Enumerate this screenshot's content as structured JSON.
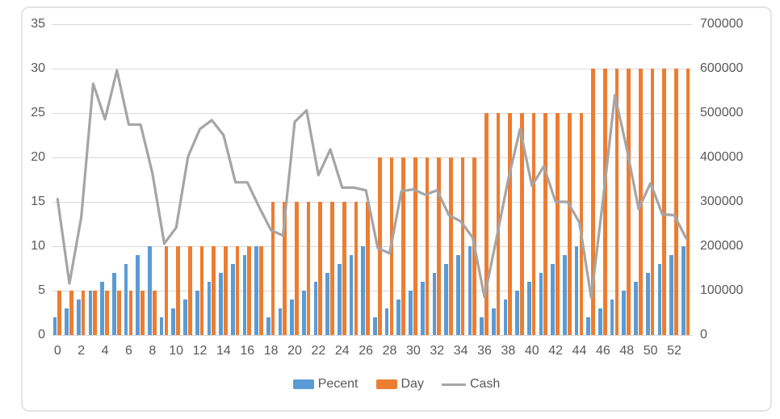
{
  "chart_data": {
    "type": "combo",
    "title": "",
    "categories": [
      0,
      1,
      2,
      3,
      4,
      5,
      6,
      7,
      8,
      9,
      10,
      11,
      12,
      13,
      14,
      15,
      16,
      17,
      18,
      19,
      20,
      21,
      22,
      23,
      24,
      25,
      26,
      27,
      28,
      29,
      30,
      31,
      32,
      33,
      34,
      35,
      36,
      37,
      38,
      39,
      40,
      41,
      42,
      43,
      44,
      45,
      46,
      47,
      48,
      49,
      50,
      51,
      52,
      53
    ],
    "x_tick_labels": [
      "0",
      "2",
      "4",
      "6",
      "8",
      "10",
      "12",
      "14",
      "16",
      "18",
      "20",
      "22",
      "24",
      "26",
      "28",
      "30",
      "32",
      "34",
      "36",
      "38",
      "40",
      "42",
      "44",
      "46",
      "48",
      "50",
      "52"
    ],
    "series": [
      {
        "name": "Pecent",
        "type": "bar",
        "axis": "left",
        "color": "#5b9bd5",
        "values": [
          2,
          3,
          4,
          5,
          6,
          7,
          8,
          9,
          10,
          2,
          3,
          4,
          5,
          6,
          7,
          8,
          9,
          10,
          2,
          3,
          4,
          5,
          6,
          7,
          8,
          9,
          10,
          2,
          3,
          4,
          5,
          6,
          7,
          8,
          9,
          10,
          2,
          3,
          4,
          5,
          6,
          7,
          8,
          9,
          10,
          2,
          3,
          4,
          5,
          6,
          7,
          8,
          9,
          10
        ]
      },
      {
        "name": "Day",
        "type": "bar",
        "axis": "left",
        "color": "#ed7d31",
        "values": [
          5,
          5,
          5,
          5,
          5,
          5,
          5,
          5,
          5,
          10,
          10,
          10,
          10,
          10,
          10,
          10,
          10,
          10,
          15,
          15,
          15,
          15,
          15,
          15,
          15,
          15,
          15,
          20,
          20,
          20,
          20,
          20,
          20,
          20,
          20,
          20,
          25,
          25,
          25,
          25,
          25,
          25,
          25,
          25,
          25,
          30,
          30,
          30,
          30,
          30,
          30,
          30,
          30,
          30
        ]
      },
      {
        "name": "Cash",
        "type": "line",
        "axis": "right",
        "color": "#a5a5a5",
        "values": [
          306000,
          116000,
          266000,
          566000,
          486000,
          596000,
          474000,
          474000,
          364000,
          206000,
          242000,
          402000,
          464000,
          484000,
          450000,
          344000,
          344000,
          288000,
          236000,
          224000,
          480000,
          506000,
          360000,
          418000,
          332000,
          332000,
          326000,
          196000,
          184000,
          324000,
          328000,
          316000,
          326000,
          270000,
          256000,
          220000,
          86000,
          216000,
          350000,
          464000,
          336000,
          380000,
          300000,
          300000,
          254000,
          84000,
          306000,
          540000,
          420000,
          284000,
          342000,
          272000,
          270000,
          218000
        ]
      }
    ],
    "left_axis": {
      "min": 0,
      "max": 35,
      "step": 5,
      "ticks": [
        "0",
        "5",
        "10",
        "15",
        "20",
        "25",
        "30",
        "35"
      ]
    },
    "right_axis": {
      "min": 0,
      "max": 700000,
      "step": 100000,
      "ticks": [
        "0",
        "100000",
        "200000",
        "300000",
        "400000",
        "500000",
        "600000",
        "700000"
      ]
    },
    "legend": {
      "position": "bottom",
      "entries": [
        "Pecent",
        "Day",
        "Cash"
      ]
    },
    "grid": true
  },
  "colors": {
    "pecent_bar": "#5b9bd5",
    "day_bar": "#ed7d31",
    "cash_line": "#a5a5a5",
    "axis_text": "#595959",
    "gridline": "#d9d9d9",
    "frame_border": "#e4e4e4",
    "background": "#ffffff"
  }
}
